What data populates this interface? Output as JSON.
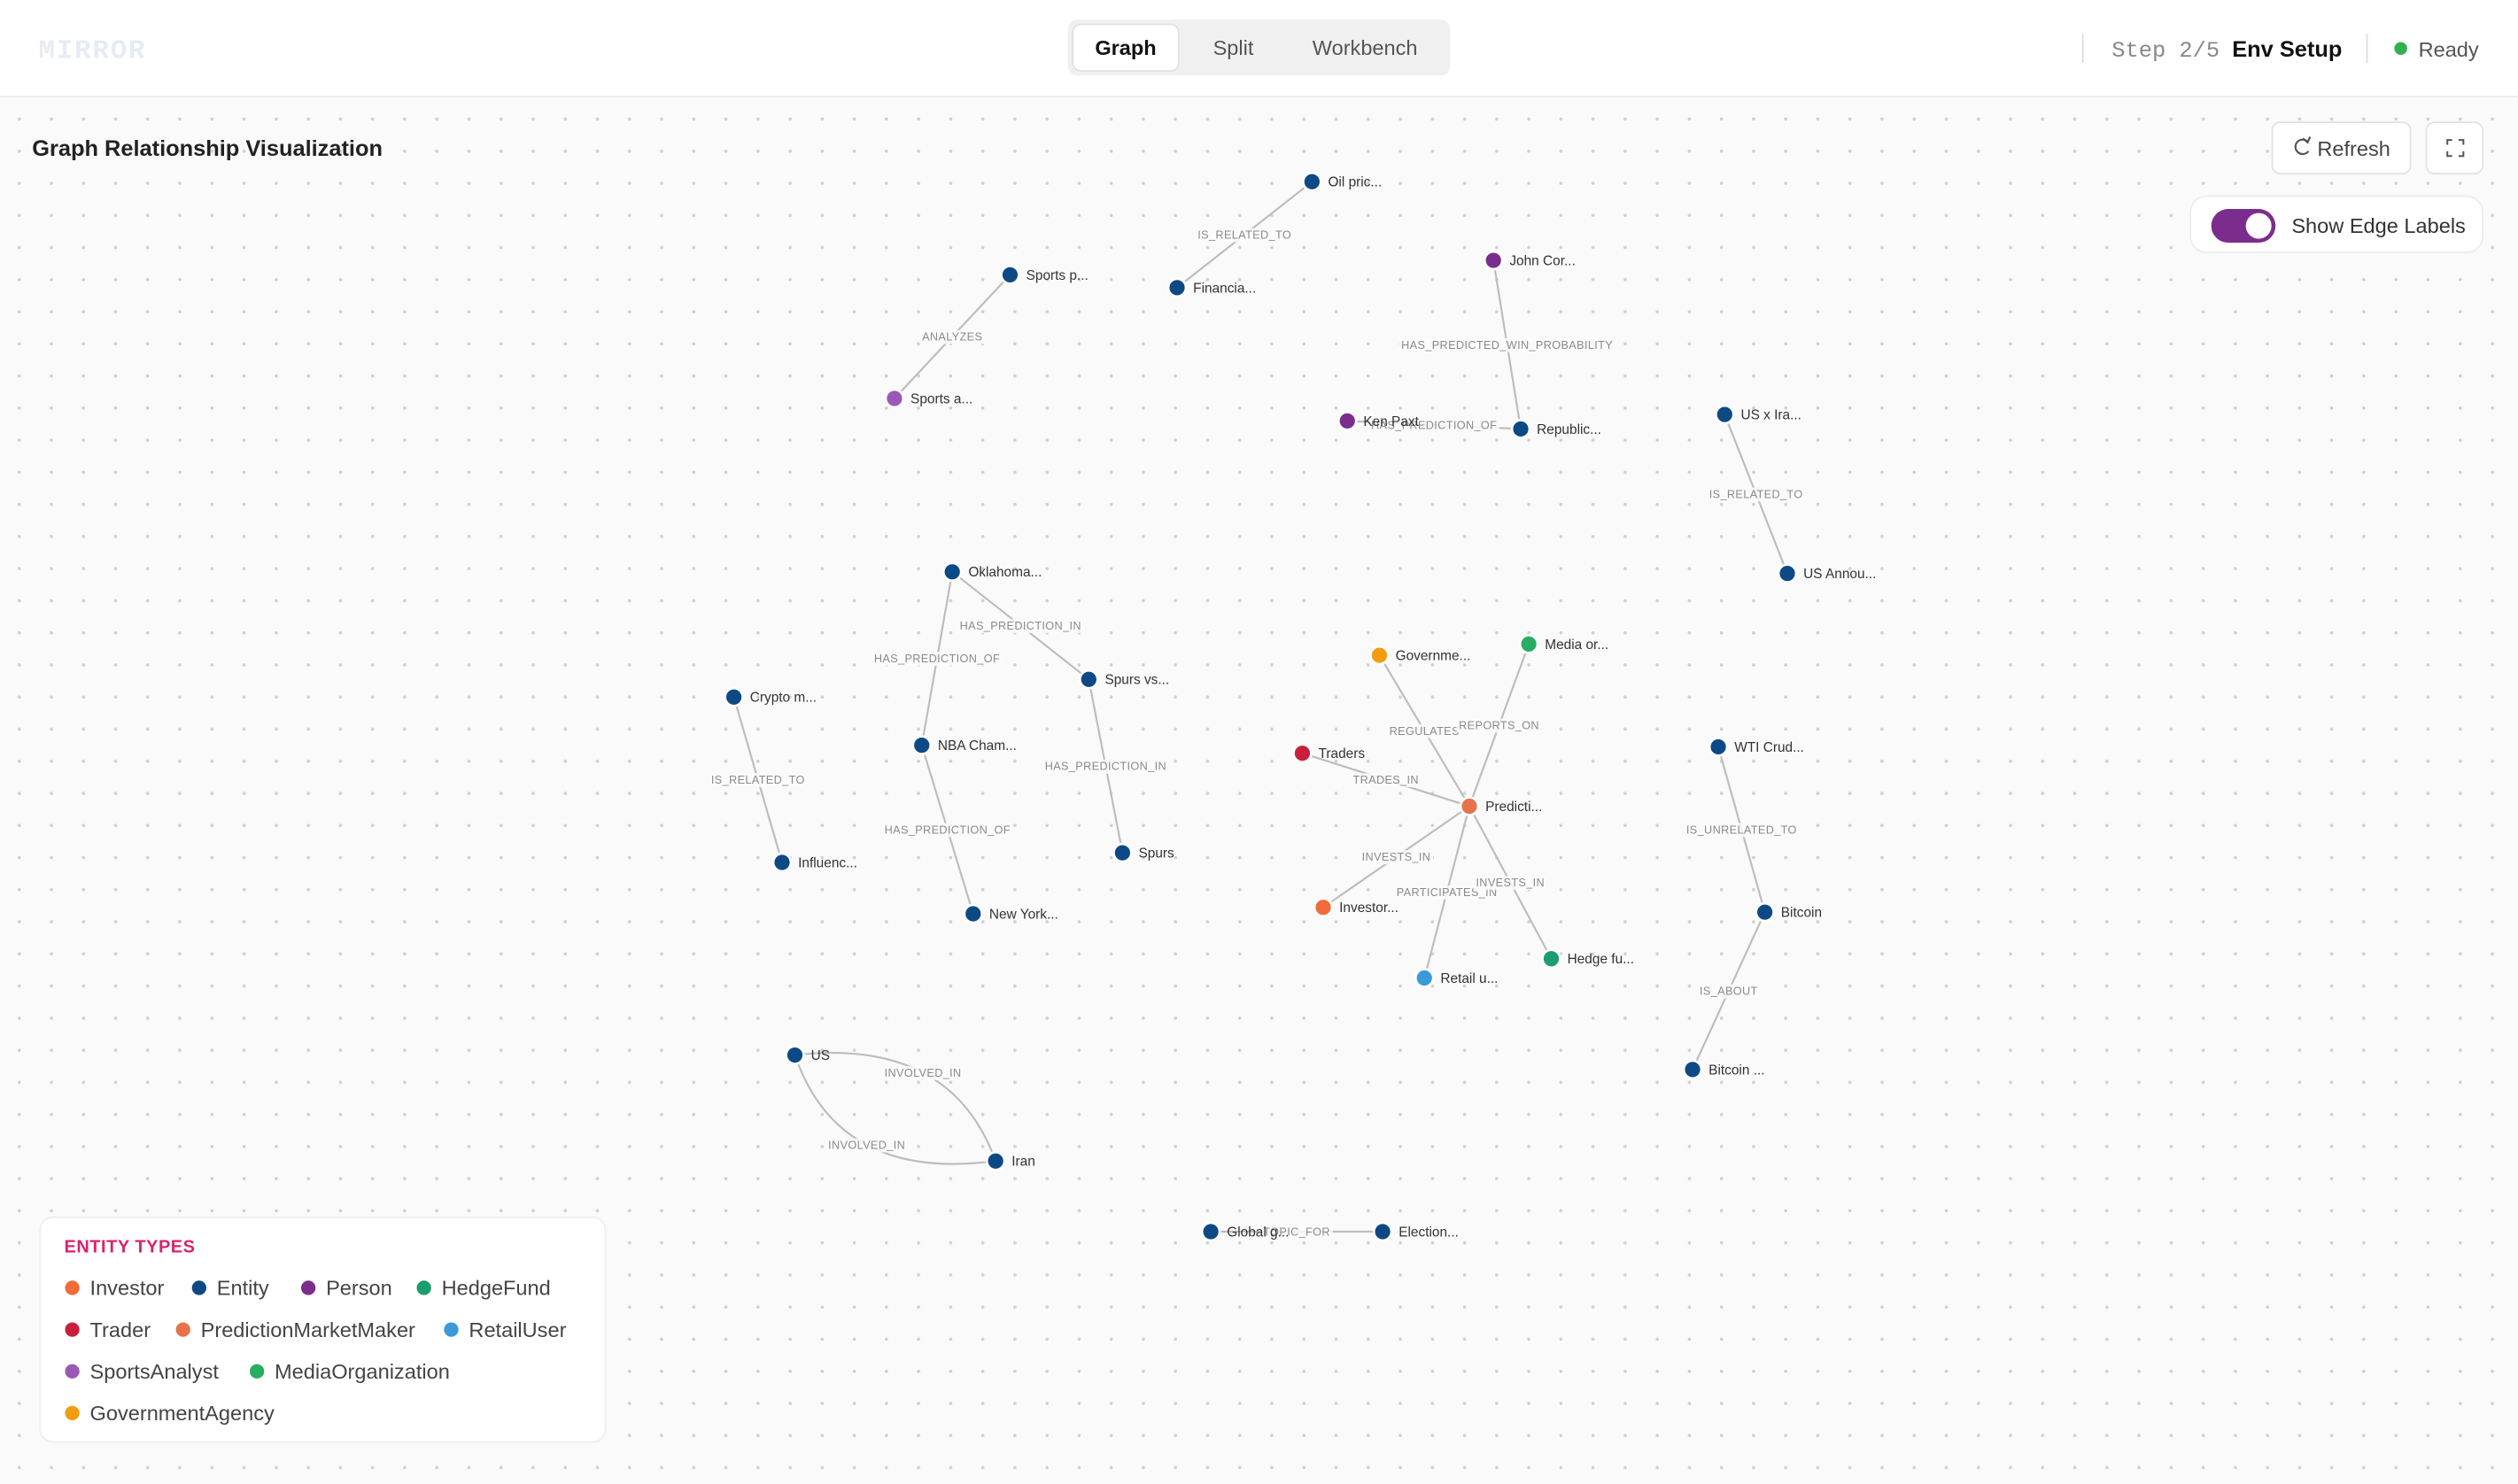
{
  "header": {
    "logo": "MIRROR",
    "tabs": [
      "Graph",
      "Split",
      "Workbench"
    ],
    "step": "Step 2/5",
    "stage": "Env Setup",
    "status": "Ready"
  },
  "panel": {
    "title": "Graph Relationship Visualization",
    "refresh": "Refresh",
    "toggle_label": "Show Edge Labels"
  },
  "graph": {
    "nodes": [
      {
        "label": "Oil pric...",
        "type": "Entity"
      },
      {
        "label": "Financia...",
        "type": "Entity"
      },
      {
        "label": "Sports p...",
        "type": "Entity"
      },
      {
        "label": "Sports a...",
        "type": "SportsAnalyst"
      },
      {
        "label": "John Cor...",
        "type": "Person"
      },
      {
        "label": "Ken Paxt",
        "type": "Person"
      },
      {
        "label": "Republic...",
        "type": "Entity"
      },
      {
        "label": "US x Ira...",
        "type": "Entity"
      },
      {
        "label": "US Annou...",
        "type": "Entity"
      },
      {
        "label": "Oklahoma...",
        "type": "Entity"
      },
      {
        "label": "Spurs vs...",
        "type": "Entity"
      },
      {
        "label": "NBA Cham...",
        "type": "Entity"
      },
      {
        "label": "Spurs",
        "type": "Entity"
      },
      {
        "label": "New York...",
        "type": "Entity"
      },
      {
        "label": "Crypto m...",
        "type": "Entity"
      },
      {
        "label": "Influenc...",
        "type": "Entity"
      },
      {
        "label": "Governme...",
        "type": "GovernmentAgency"
      },
      {
        "label": "Media or...",
        "type": "MediaOrganization"
      },
      {
        "label": "Traders",
        "type": "Trader"
      },
      {
        "label": "Predicti...",
        "type": "PredictionMarketMaker"
      },
      {
        "label": "Investor...",
        "type": "Investor"
      },
      {
        "label": "Retail u...",
        "type": "RetailUser"
      },
      {
        "label": "Hedge fu...",
        "type": "HedgeFund"
      },
      {
        "label": "WTI Crud...",
        "type": "Entity"
      },
      {
        "label": "Bitcoin",
        "type": "Entity"
      },
      {
        "label": "Bitcoin ...",
        "type": "Entity"
      },
      {
        "label": "US",
        "type": "Entity"
      },
      {
        "label": "Iran",
        "type": "Entity"
      },
      {
        "label": "Global g...",
        "type": "Entity"
      },
      {
        "label": "Election...",
        "type": "Entity"
      }
    ],
    "edges": [
      {
        "source": 0,
        "target": 1,
        "label": "IS_RELATED_TO"
      },
      {
        "source": 2,
        "target": 3,
        "label": "ANALYZES"
      },
      {
        "source": 4,
        "target": 6,
        "label": "HAS_PREDICTED_WIN_PROBABILITY"
      },
      {
        "source": 5,
        "target": 6,
        "label": "HAS_PREDICTION_OF"
      },
      {
        "source": 7,
        "target": 8,
        "label": "IS_RELATED_TO"
      },
      {
        "source": 9,
        "target": 10,
        "label": "HAS_PREDICTION_IN"
      },
      {
        "source": 9,
        "target": 11,
        "label": "HAS_PREDICTION_OF"
      },
      {
        "source": 10,
        "target": 12,
        "label": "HAS_PREDICTION_IN"
      },
      {
        "source": 11,
        "target": 13,
        "label": "HAS_PREDICTION_OF"
      },
      {
        "source": 14,
        "target": 15,
        "label": "IS_RELATED_TO"
      },
      {
        "source": 16,
        "target": 19,
        "label": "REGULATES"
      },
      {
        "source": 17,
        "target": 19,
        "label": "REPORTS_ON"
      },
      {
        "source": 18,
        "target": 19,
        "label": "TRADES_IN"
      },
      {
        "source": 20,
        "target": 19,
        "label": "INVESTS_IN"
      },
      {
        "source": 21,
        "target": 19,
        "label": "PARTICIPATES_IN"
      },
      {
        "source": 22,
        "target": 19,
        "label": "INVESTS_IN"
      },
      {
        "source": 23,
        "target": 24,
        "label": "IS_UNRELATED_TO"
      },
      {
        "source": 24,
        "target": 25,
        "label": "IS_ABOUT"
      },
      {
        "source": 26,
        "target": 27,
        "label": "INVOLVED_IN"
      },
      {
        "source": 27,
        "target": 26,
        "label": "INVOLVED_IN"
      },
      {
        "source": 28,
        "target": 29,
        "label": "TOPIC_FOR"
      }
    ]
  },
  "legend": {
    "title": "ENTITY TYPES",
    "types": [
      {
        "name": "Investor",
        "color": "#f26b3a"
      },
      {
        "name": "Entity",
        "color": "#0d4a85"
      },
      {
        "name": "Person",
        "color": "#7b2d8e"
      },
      {
        "name": "HedgeFund",
        "color": "#1a9e6e"
      },
      {
        "name": "Trader",
        "color": "#c8203c"
      },
      {
        "name": "PredictionMarketMaker",
        "color": "#e8734a"
      },
      {
        "name": "RetailUser",
        "color": "#3a9ad9"
      },
      {
        "name": "SportsAnalyst",
        "color": "#9b59b6"
      },
      {
        "name": "MediaOrganization",
        "color": "#27ae60"
      },
      {
        "name": "GovernmentAgency",
        "color": "#f39c12"
      }
    ]
  }
}
